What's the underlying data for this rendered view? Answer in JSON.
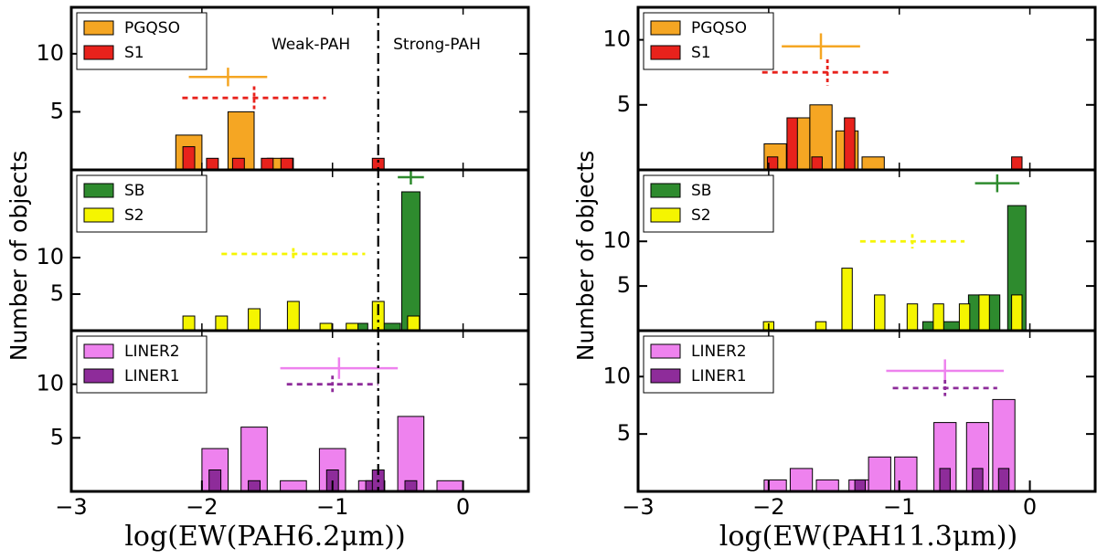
{
  "figure": {
    "ylabel": "Number of objects",
    "colors": {
      "PGQSO": "#f5a623",
      "S1": "#e8221c",
      "SB": "#2e8b2e",
      "S2": "#f5f500",
      "LINER2": "#ee82ee",
      "LINER1": "#8e2c9a"
    }
  },
  "chart_data": [
    {
      "type": "bar",
      "xlabel": "log(EW(PAH6.2μm))",
      "xlim": [
        -3,
        0.5
      ],
      "xticks": [
        "−3",
        "−2",
        "−1",
        "0"
      ],
      "xtick_values": [
        -3,
        -2,
        -1,
        0
      ],
      "divider_x": -0.65,
      "annotations": [
        "Weak-PAH",
        "Strong-PAH"
      ],
      "panels": [
        {
          "ylim": [
            0,
            14
          ],
          "yticks": [
            5,
            10
          ],
          "legend": [
            "PGQSO",
            "S1"
          ],
          "bars": [
            {
              "series": "PGQSO",
              "width": 0.2,
              "centers": [
                -2.1,
                -1.7,
                -1.4
              ],
              "values": [
                3,
                5,
                1
              ]
            },
            {
              "series": "S1",
              "width": 0.09,
              "centers": [
                -2.1,
                -1.92,
                -1.72,
                -1.5,
                -1.35,
                -0.65
              ],
              "values": [
                2,
                1,
                1,
                1,
                1,
                1
              ]
            }
          ],
          "errors": [
            {
              "series": "PGQSO",
              "style": "solid",
              "x": -1.8,
              "y": 8,
              "xerr": 0.3,
              "yerr": 0.8
            },
            {
              "series": "S1",
              "style": "dashed",
              "x": -1.6,
              "y": 6.2,
              "xerr": 0.55,
              "yerr": 1.0
            }
          ]
        },
        {
          "ylim": [
            0,
            22
          ],
          "yticks": [
            5,
            10
          ],
          "legend": [
            "SB",
            "S2"
          ],
          "bars": [
            {
              "series": "SB",
              "width": 0.14,
              "centers": [
                -0.8,
                -0.55,
                -0.4
              ],
              "values": [
                1,
                1,
                19
              ]
            },
            {
              "series": "S2",
              "width": 0.09,
              "centers": [
                -2.1,
                -1.85,
                -1.6,
                -1.3,
                -1.05,
                -0.85,
                -0.65,
                -0.38
              ],
              "values": [
                2,
                2,
                3,
                4,
                1,
                1,
                4,
                2
              ]
            }
          ],
          "errors": [
            {
              "series": "SB",
              "style": "solid",
              "x": -0.4,
              "y": 21,
              "xerr": 0.1,
              "yerr": 1
            },
            {
              "series": "S2",
              "style": "dashed",
              "x": -1.3,
              "y": 10.5,
              "xerr": 0.55,
              "yerr": 0.8
            }
          ]
        },
        {
          "ylim": [
            0,
            15
          ],
          "yticks": [
            5,
            10
          ],
          "legend": [
            "LINER2",
            "LINER1"
          ],
          "bars": [
            {
              "series": "LINER2",
              "width": 0.2,
              "centers": [
                -1.9,
                -1.6,
                -1.3,
                -1.0,
                -0.7,
                -0.4,
                -0.1
              ],
              "values": [
                4,
                6,
                1,
                4,
                1,
                7,
                1
              ]
            },
            {
              "series": "LINER1",
              "width": 0.09,
              "centers": [
                -1.9,
                -1.6,
                -1.0,
                -0.7,
                -0.65,
                -0.4
              ],
              "values": [
                2,
                1,
                2,
                1,
                2,
                1
              ]
            }
          ],
          "errors": [
            {
              "series": "LINER2",
              "style": "solid",
              "x": -0.95,
              "y": 11.5,
              "xerr": 0.45,
              "yerr": 1
            },
            {
              "series": "LINER1",
              "style": "dashed",
              "x": -1.0,
              "y": 10.0,
              "xerr": 0.35,
              "yerr": 0.8
            }
          ]
        }
      ]
    },
    {
      "type": "bar",
      "xlabel": "log(EW(PAH11.3μm))",
      "xlim": [
        -3,
        0.5
      ],
      "xticks": [
        "−3",
        "−2",
        "−1",
        "0"
      ],
      "xtick_values": [
        -3,
        -2,
        -1,
        0
      ],
      "panels": [
        {
          "ylim": [
            0,
            12.5
          ],
          "yticks": [
            5,
            10
          ],
          "legend": [
            "PGQSO",
            "S1"
          ],
          "bars": [
            {
              "series": "PGQSO",
              "width": 0.17,
              "centers": [
                -1.95,
                -1.77,
                -1.6,
                -1.4,
                -1.2
              ],
              "values": [
                2,
                4,
                5,
                3,
                1
              ]
            },
            {
              "series": "S1",
              "width": 0.08,
              "centers": [
                -1.97,
                -1.82,
                -1.63,
                -1.38,
                -0.1
              ],
              "values": [
                1,
                4,
                1,
                4,
                1
              ]
            }
          ],
          "errors": [
            {
              "series": "PGQSO",
              "style": "solid",
              "x": -1.6,
              "y": 9.5,
              "xerr": 0.3,
              "yerr": 1
            },
            {
              "series": "S1",
              "style": "dashed",
              "x": -1.55,
              "y": 7.5,
              "xerr": 0.5,
              "yerr": 1
            }
          ]
        },
        {
          "ylim": [
            0,
            18
          ],
          "yticks": [
            5,
            10
          ],
          "legend": [
            "SB",
            "S2"
          ],
          "bars": [
            {
              "series": "SB",
              "width": 0.14,
              "centers": [
                -0.75,
                -0.6,
                -0.4,
                -0.3,
                -0.1
              ],
              "values": [
                1,
                1,
                4,
                4,
                14
              ]
            },
            {
              "series": "S2",
              "width": 0.08,
              "centers": [
                -2.0,
                -1.6,
                -1.4,
                -1.15,
                -0.9,
                -0.7,
                -0.5,
                -0.35,
                -0.1
              ],
              "values": [
                1,
                1,
                7,
                4,
                3,
                3,
                3,
                4,
                4
              ]
            }
          ],
          "errors": [
            {
              "series": "SB",
              "style": "solid",
              "x": -0.25,
              "y": 16.5,
              "xerr": 0.17,
              "yerr": 1
            },
            {
              "series": "S2",
              "style": "dashed",
              "x": -0.9,
              "y": 10,
              "xerr": 0.4,
              "yerr": 0.8
            }
          ]
        },
        {
          "ylim": [
            0,
            14
          ],
          "yticks": [
            5,
            10
          ],
          "legend": [
            "LINER2",
            "LINER1"
          ],
          "bars": [
            {
              "series": "LINER2",
              "width": 0.17,
              "centers": [
                -1.95,
                -1.75,
                -1.55,
                -1.3,
                -1.15,
                -0.95,
                -0.65,
                -0.4,
                -0.2
              ],
              "values": [
                1,
                2,
                1,
                1,
                3,
                3,
                6,
                6,
                8
              ]
            },
            {
              "series": "LINER1",
              "width": 0.08,
              "centers": [
                -1.3,
                -0.65,
                -0.4,
                -0.2
              ],
              "values": [
                1,
                2,
                2,
                2
              ]
            }
          ],
          "errors": [
            {
              "series": "LINER2",
              "style": "solid",
              "x": -0.65,
              "y": 10.5,
              "xerr": 0.45,
              "yerr": 1
            },
            {
              "series": "LINER1",
              "style": "dashed",
              "x": -0.65,
              "y": 9.0,
              "xerr": 0.4,
              "yerr": 0.7
            }
          ]
        }
      ]
    }
  ]
}
